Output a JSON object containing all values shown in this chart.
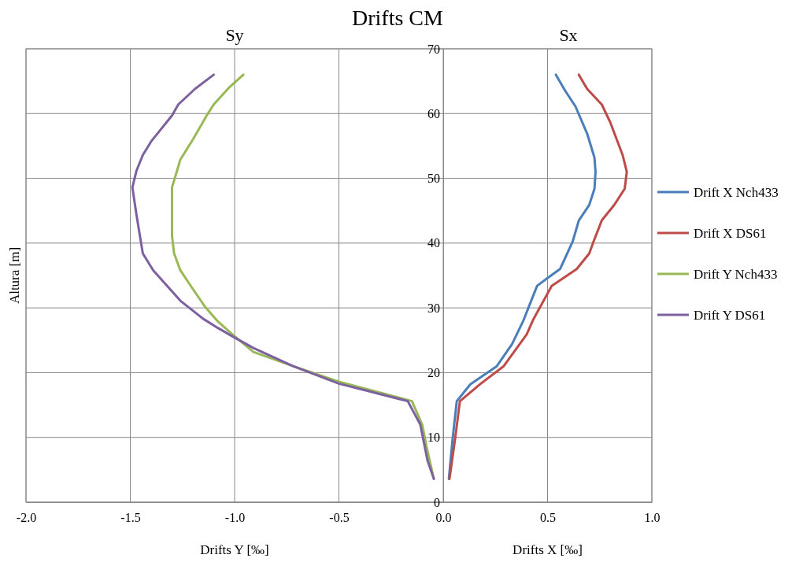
{
  "chart_data": {
    "type": "line",
    "title": "Drifts CM",
    "xlabel": "Drifts Y [‰]",
    "ylabel": "Altura [m]",
    "annotations": [
      "Sy",
      "Sx",
      "Drifts X [‰]"
    ],
    "xlim": [
      -2,
      1
    ],
    "xticks": [
      {
        "value": -2,
        "label": "-2.0"
      },
      {
        "value": -1.5,
        "label": "-1.5"
      },
      {
        "value": -1,
        "label": "-1.0"
      },
      {
        "value": -0.5,
        "label": "-0.5"
      },
      {
        "value": 0,
        "label": "0.0"
      },
      {
        "value": 0.5,
        "label": "0.5"
      },
      {
        "value": 1,
        "label": "1.0"
      }
    ],
    "ylim": [
      0,
      70
    ],
    "yticks": [
      0,
      10,
      20,
      30,
      40,
      50,
      60,
      70
    ],
    "grid": true,
    "legend": "right",
    "marker": "none",
    "series": [
      {
        "name": "Drift X Nch433",
        "color": "#4a7ebb",
        "x": [
          0.54,
          0.585,
          0.634,
          0.69,
          0.725,
          0.73,
          0.725,
          0.7,
          0.65,
          0.62,
          0.56,
          0.5,
          0.45,
          0.385,
          0.33,
          0.257,
          0.13,
          0.065,
          0.045,
          0.027
        ],
        "values": [
          66.0,
          63.5,
          61.1,
          56.9,
          53.2,
          51.0,
          48.4,
          45.9,
          43.5,
          40.2,
          36.0,
          34.6,
          33.4,
          28.1,
          24.4,
          21.0,
          18.2,
          15.6,
          9.8,
          3.6
        ]
      },
      {
        "name": "Drift X DS61",
        "color": "#be4b48",
        "x": [
          0.65,
          0.69,
          0.76,
          0.8,
          0.86,
          0.88,
          0.87,
          0.82,
          0.76,
          0.72,
          0.7,
          0.64,
          0.52,
          0.43,
          0.4,
          0.29,
          0.18,
          0.08,
          0.057,
          0.03
        ],
        "values": [
          66.0,
          63.8,
          61.4,
          58.7,
          53.6,
          51.0,
          48.4,
          45.9,
          43.5,
          40.2,
          38.4,
          36.0,
          33.4,
          28.1,
          25.9,
          21.0,
          18.3,
          15.6,
          9.8,
          3.6
        ]
      },
      {
        "name": "Drift Y Nch433",
        "color": "#98b954",
        "x": [
          -0.958,
          -1.03,
          -1.1,
          -1.13,
          -1.2,
          -1.26,
          -1.3,
          -1.3,
          -1.29,
          -1.26,
          -1.2,
          -1.14,
          -1.08,
          -1.01,
          -0.91,
          -0.72,
          -0.5,
          -0.15,
          -0.1,
          -0.08,
          -0.045
        ],
        "values": [
          66.0,
          63.9,
          61.4,
          59.9,
          56.0,
          52.9,
          48.6,
          41.1,
          38.4,
          35.8,
          32.9,
          30.1,
          27.9,
          25.9,
          23.2,
          21.0,
          18.6,
          15.6,
          11.9,
          8.6,
          3.6
        ]
      },
      {
        "name": "Drift Y DS61",
        "color": "#7d60a0",
        "x": [
          -1.1,
          -1.19,
          -1.27,
          -1.3,
          -1.4,
          -1.44,
          -1.47,
          -1.49,
          -1.47,
          -1.44,
          -1.39,
          -1.26,
          -1.15,
          -1.08,
          -1.01,
          -0.91,
          -0.72,
          -0.5,
          -0.17,
          -0.11,
          -0.075,
          -0.045
        ],
        "values": [
          66.0,
          63.8,
          61.4,
          59.7,
          55.7,
          53.6,
          51.2,
          48.6,
          44.3,
          38.4,
          35.8,
          31.1,
          28.3,
          26.9,
          25.6,
          23.8,
          21.0,
          18.3,
          15.6,
          12.0,
          6.4,
          3.6
        ]
      }
    ]
  }
}
